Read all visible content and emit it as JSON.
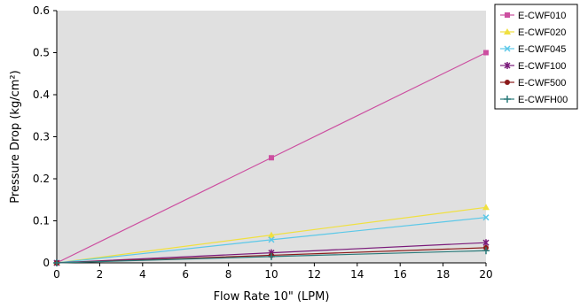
{
  "chart_data": {
    "type": "line",
    "title": "",
    "xlabel": "Flow Rate 10\" (LPM)",
    "ylabel": "Pressure Drop (kg/cm²)",
    "xlim": [
      0,
      20
    ],
    "ylim": [
      0,
      0.6
    ],
    "x_ticks": [
      "0",
      "2",
      "4",
      "6",
      "8",
      "10",
      "12",
      "14",
      "16",
      "18",
      "20"
    ],
    "y_ticks": [
      "0",
      "0.1",
      "0.2",
      "0.3",
      "0.4",
      "0.5",
      "0.6"
    ],
    "grid": false,
    "plot_background": "#e0e0e0",
    "legend_position": "right",
    "x": [
      0,
      10,
      20
    ],
    "series": [
      {
        "name": "E-CWF010",
        "values": [
          0,
          0.25,
          0.5
        ],
        "color": "#cc4fa0",
        "marker": "square"
      },
      {
        "name": "E-CWF020",
        "values": [
          0,
          0.066,
          0.132
        ],
        "color": "#f0e040",
        "marker": "triangle"
      },
      {
        "name": "E-CWF045",
        "values": [
          0,
          0.055,
          0.108
        ],
        "color": "#5cc8e8",
        "marker": "x"
      },
      {
        "name": "E-CWF100",
        "values": [
          0,
          0.024,
          0.048
        ],
        "color": "#7a1a7a",
        "marker": "star"
      },
      {
        "name": "E-CWF500",
        "values": [
          0,
          0.018,
          0.036
        ],
        "color": "#8b1a1a",
        "marker": "circle"
      },
      {
        "name": "E-CWFH00",
        "values": [
          0,
          0.015,
          0.029
        ],
        "color": "#2a7a7a",
        "marker": "plus"
      }
    ]
  }
}
